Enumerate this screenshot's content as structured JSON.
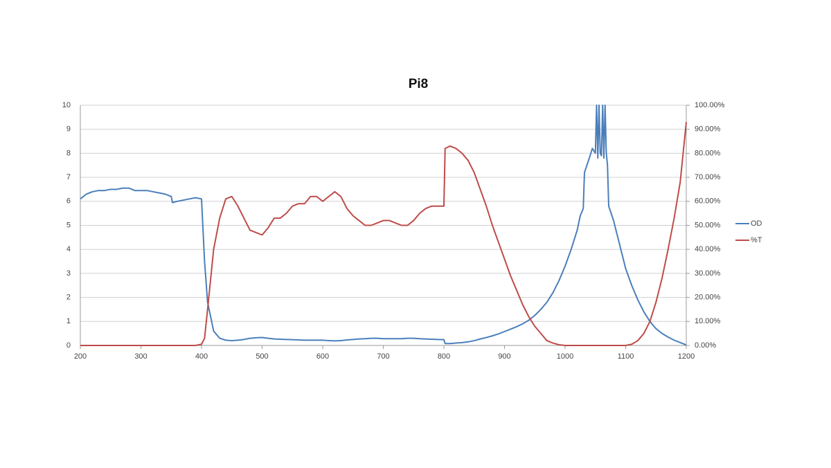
{
  "chart_data": {
    "type": "line",
    "title": "Pi8",
    "x": [
      200,
      210,
      220,
      230,
      240,
      250,
      260,
      270,
      280,
      290,
      300,
      310,
      320,
      330,
      340,
      350,
      352,
      360,
      370,
      380,
      390,
      400,
      405,
      410,
      420,
      430,
      440,
      450,
      460,
      470,
      480,
      490,
      500,
      510,
      520,
      530,
      540,
      550,
      560,
      570,
      580,
      590,
      600,
      610,
      620,
      630,
      640,
      650,
      660,
      670,
      680,
      690,
      700,
      710,
      720,
      730,
      740,
      750,
      760,
      770,
      780,
      790,
      800,
      802,
      810,
      820,
      830,
      840,
      850,
      860,
      870,
      880,
      890,
      900,
      910,
      920,
      930,
      940,
      950,
      960,
      970,
      980,
      990,
      1000,
      1010,
      1020,
      1025,
      1030,
      1032,
      1040,
      1045,
      1050,
      1052,
      1054,
      1056,
      1058,
      1060,
      1062,
      1064,
      1066,
      1068,
      1070,
      1072,
      1080,
      1090,
      1100,
      1110,
      1120,
      1130,
      1140,
      1150,
      1160,
      1170,
      1180,
      1190,
      1200
    ],
    "series": [
      {
        "name": "OD",
        "color": "#4a7ebb",
        "values": [
          6.1,
          6.3,
          6.4,
          6.45,
          6.45,
          6.5,
          6.5,
          6.55,
          6.55,
          6.45,
          6.45,
          6.45,
          6.4,
          6.35,
          6.3,
          6.2,
          5.95,
          6.0,
          6.05,
          6.1,
          6.15,
          6.1,
          3.5,
          1.8,
          0.6,
          0.3,
          0.22,
          0.2,
          0.22,
          0.25,
          0.3,
          0.32,
          0.33,
          0.3,
          0.27,
          0.26,
          0.25,
          0.24,
          0.23,
          0.22,
          0.22,
          0.22,
          0.22,
          0.2,
          0.19,
          0.2,
          0.23,
          0.25,
          0.27,
          0.28,
          0.3,
          0.3,
          0.28,
          0.28,
          0.28,
          0.28,
          0.3,
          0.3,
          0.28,
          0.27,
          0.26,
          0.25,
          0.24,
          0.08,
          0.08,
          0.1,
          0.12,
          0.15,
          0.2,
          0.27,
          0.33,
          0.4,
          0.48,
          0.58,
          0.68,
          0.78,
          0.9,
          1.05,
          1.25,
          1.5,
          1.8,
          2.2,
          2.7,
          3.3,
          4.0,
          4.8,
          5.4,
          5.7,
          7.2,
          7.8,
          8.2,
          8.0,
          10,
          7.8,
          10,
          8.0,
          7.9,
          10,
          7.8,
          10,
          8.0,
          7.5,
          5.8,
          5.2,
          4.2,
          3.2,
          2.5,
          1.9,
          1.4,
          1.0,
          0.7,
          0.5,
          0.35,
          0.22,
          0.12,
          0.02
        ]
      },
      {
        "name": "%T",
        "color": "#be4b48",
        "axis": "y2",
        "values": [
          0,
          0,
          0,
          0,
          0,
          0,
          0,
          0,
          0,
          0,
          0,
          0,
          0,
          0,
          0,
          0,
          0,
          0,
          0,
          0,
          0,
          0.5,
          3,
          15,
          40,
          53,
          61,
          62,
          58,
          53,
          48,
          47,
          46,
          49,
          53,
          53,
          55,
          58,
          59,
          59,
          62,
          62,
          60,
          62,
          64,
          62,
          57,
          54,
          52,
          50,
          50,
          51,
          52,
          52,
          51,
          50,
          50,
          52,
          55,
          57,
          58,
          58,
          58,
          82,
          83,
          82,
          80,
          77,
          72,
          65,
          58,
          50,
          43,
          36,
          29,
          23,
          17,
          12,
          8,
          5,
          2,
          1,
          0.3,
          0,
          0,
          0,
          0,
          0,
          0,
          0,
          0,
          0,
          0,
          0,
          0,
          0,
          0,
          0,
          0,
          0,
          0,
          0,
          0,
          0,
          0,
          0,
          0.5,
          2,
          5,
          10,
          18,
          28,
          40,
          53,
          68,
          93
        ]
      }
    ],
    "xlim": [
      200,
      1200
    ],
    "xticks": [
      200,
      300,
      400,
      500,
      600,
      700,
      800,
      900,
      1000,
      1100,
      1200
    ],
    "ylim": [
      0,
      10
    ],
    "yticks": [
      0,
      1,
      2,
      3,
      4,
      5,
      6,
      7,
      8,
      9,
      10
    ],
    "y2lim": [
      0,
      100
    ],
    "y2ticks": [
      {
        "value": 0,
        "label": "0.00%"
      },
      {
        "value": 10,
        "label": "10.00%"
      },
      {
        "value": 20,
        "label": "20.00%"
      },
      {
        "value": 30,
        "label": "30.00%"
      },
      {
        "value": 40,
        "label": "40.00%"
      },
      {
        "value": 50,
        "label": "50.00%"
      },
      {
        "value": 60,
        "label": "60.00%"
      },
      {
        "value": 70,
        "label": "70.00%"
      },
      {
        "value": 80,
        "label": "80.00%"
      },
      {
        "value": 90,
        "label": "90.00%"
      },
      {
        "value": 100,
        "label": "100.00%"
      }
    ],
    "grid": true,
    "legend": "right"
  }
}
